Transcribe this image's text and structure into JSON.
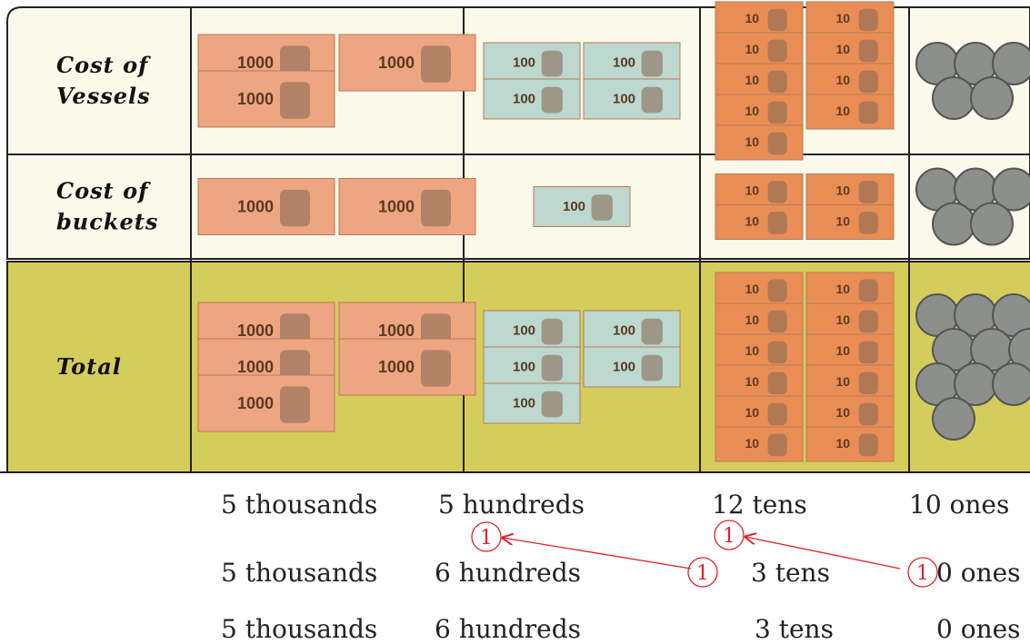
{
  "table": {
    "rows": [
      {
        "label": [
          "Cost of",
          "Vessels"
        ],
        "counts": [
          3,
          4,
          9,
          5
        ]
      },
      {
        "label": [
          "Cost of",
          "buckets"
        ],
        "counts": [
          2,
          1,
          4,
          5
        ]
      },
      {
        "label": [
          "Total"
        ],
        "counts": [
          5,
          5,
          12,
          10
        ]
      }
    ]
  },
  "note_labels": [
    "1000",
    "100",
    "10"
  ],
  "lines": [
    [
      "5 thousands",
      "5 hundreds",
      "12 tens",
      "10 ones"
    ],
    [
      "5 thousands",
      "6 hundreds",
      "3 tens",
      "0 ones"
    ],
    [
      "5 thousands",
      "6 hundreds",
      "3 tens",
      "0 ones"
    ]
  ],
  "carries": [
    "1",
    "1",
    "1",
    "1"
  ]
}
